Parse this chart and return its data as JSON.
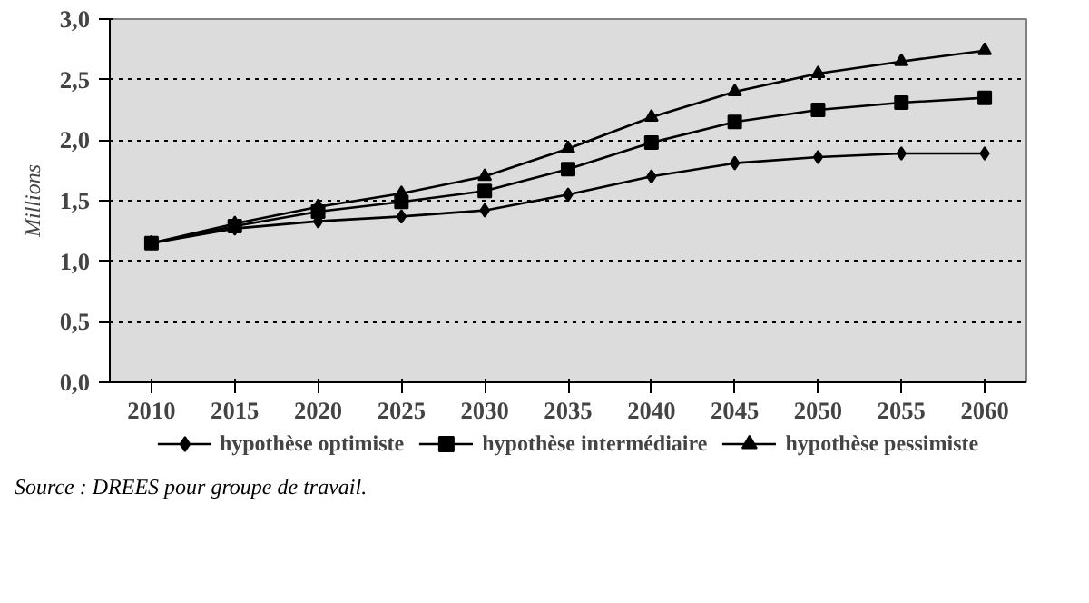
{
  "chart_data": {
    "type": "line",
    "ylabel": "Millions",
    "categories": [
      "2010",
      "2015",
      "2020",
      "2025",
      "2030",
      "2035",
      "2040",
      "2045",
      "2050",
      "2055",
      "2060"
    ],
    "series": [
      {
        "name": "hypothèse optimiste",
        "color": "#000000",
        "marker": "diamond",
        "values": [
          1.15,
          1.27,
          1.33,
          1.37,
          1.42,
          1.55,
          1.7,
          1.81,
          1.86,
          1.89,
          1.89
        ]
      },
      {
        "name": "hypothèse intermédiaire",
        "color": "#000000",
        "marker": "square",
        "values": [
          1.15,
          1.29,
          1.41,
          1.49,
          1.58,
          1.76,
          1.98,
          2.15,
          2.25,
          2.31,
          2.35
        ]
      },
      {
        "name": "hypothèse pessimiste",
        "color": "#000000",
        "marker": "triangle",
        "values": [
          1.15,
          1.31,
          1.45,
          1.56,
          1.7,
          1.93,
          2.19,
          2.4,
          2.55,
          2.65,
          2.74
        ]
      }
    ],
    "ylim": [
      0,
      3
    ],
    "yticks": [
      {
        "value": 0,
        "label": "0,0"
      },
      {
        "value": 0.5,
        "label": "0,5"
      },
      {
        "value": 1,
        "label": "1,0"
      },
      {
        "value": 1.5,
        "label": "1,5"
      },
      {
        "value": 2,
        "label": "2,0"
      },
      {
        "value": 2.5,
        "label": "2,5"
      },
      {
        "value": 3,
        "label": "3,0"
      }
    ],
    "grid": "y",
    "line_style": "solid",
    "legend": "bottom",
    "annotations": [
      "Source : DREES pour groupe de travail."
    ]
  }
}
